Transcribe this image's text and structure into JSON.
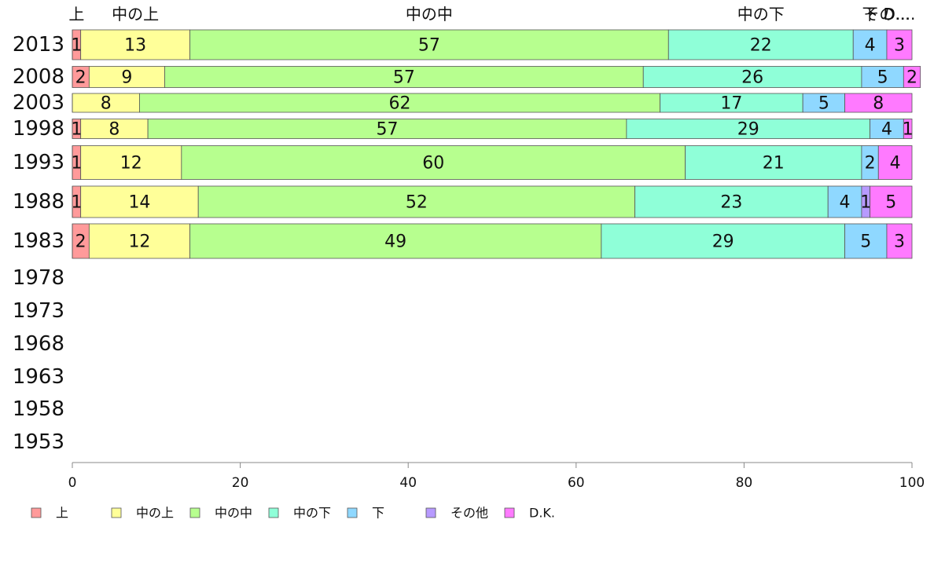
{
  "chart_data": {
    "type": "bar",
    "orientation": "horizontal",
    "stacked": true,
    "title": "",
    "xlabel": "",
    "ylabel": "",
    "xlim": [
      0,
      100
    ],
    "x_ticks": [
      "0",
      "20",
      "40",
      "60",
      "80",
      "100"
    ],
    "top_labels": [
      "上",
      "中の上",
      "中の中",
      "中の下",
      "下",
      "その...",
      "D...."
    ],
    "categories": [
      "2013",
      "2008",
      "2003",
      "1998",
      "1993",
      "1988",
      "1983",
      "1978",
      "1973",
      "1968",
      "1963",
      "1958",
      "1953"
    ],
    "series": [
      {
        "name": "上",
        "color": "#ff9a9a",
        "values": [
          1,
          2,
          0,
          1,
          1,
          1,
          2,
          null,
          null,
          null,
          null,
          null,
          null
        ]
      },
      {
        "name": "中の上",
        "color": "#ffff99",
        "values": [
          13,
          9,
          8,
          8,
          12,
          14,
          12,
          null,
          null,
          null,
          null,
          null,
          null
        ]
      },
      {
        "name": "中の中",
        "color": "#b7ff8f",
        "values": [
          57,
          57,
          62,
          57,
          60,
          52,
          49,
          null,
          null,
          null,
          null,
          null,
          null
        ]
      },
      {
        "name": "中の下",
        "color": "#8fffd8",
        "values": [
          22,
          26,
          17,
          29,
          21,
          23,
          29,
          null,
          null,
          null,
          null,
          null,
          null
        ]
      },
      {
        "name": "下",
        "color": "#8fd8ff",
        "values": [
          4,
          5,
          5,
          4,
          2,
          4,
          5,
          null,
          null,
          null,
          null,
          null,
          null
        ]
      },
      {
        "name": "その他",
        "color": "#b79aff",
        "values": [
          0,
          0,
          0,
          0,
          0,
          1,
          0,
          null,
          null,
          null,
          null,
          null,
          null
        ]
      },
      {
        "name": "D.K.",
        "color": "#ff7aff",
        "values": [
          3,
          2,
          8,
          1,
          4,
          5,
          3,
          null,
          null,
          null,
          null,
          null,
          null
        ]
      }
    ],
    "data_labels": [
      [
        "1",
        "13",
        "57",
        "22",
        "4",
        "",
        "3"
      ],
      [
        "2",
        "9",
        "57",
        "26",
        "5",
        "",
        "2"
      ],
      [
        "",
        "8",
        "62",
        "17",
        "5",
        "",
        "8"
      ],
      [
        "1",
        "8",
        "57",
        "29",
        "4",
        "",
        "1"
      ],
      [
        "1",
        "12",
        "60",
        "21",
        "2",
        "",
        "4"
      ],
      [
        "1",
        "14",
        "52",
        "23",
        "4",
        "1",
        "5"
      ],
      [
        "2",
        "12",
        "49",
        "29",
        "5",
        "",
        "3"
      ]
    ],
    "legend_position": "bottom",
    "grid": false
  }
}
